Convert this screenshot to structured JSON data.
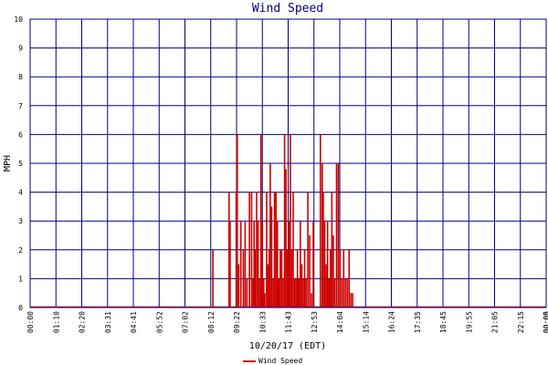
{
  "chart_data": {
    "type": "bar",
    "title": "Wind Speed",
    "xlabel": "10/20/17 (EDT)",
    "ylabel": "MPH",
    "ylim": [
      0,
      10
    ],
    "y_ticks": [
      "0",
      "1",
      "2",
      "3",
      "4",
      "5",
      "6",
      "7",
      "8",
      "9",
      "10"
    ],
    "x_range_minutes": [
      0,
      1440
    ],
    "x_ticks": [
      "00:00",
      "01:10",
      "02:20",
      "03:31",
      "04:41",
      "05:52",
      "07:02",
      "08:12",
      "09:22",
      "10:33",
      "11:43",
      "12:53",
      "14:04",
      "15:14",
      "16:24",
      "17:35",
      "18:45",
      "19:55",
      "21:05",
      "22:15",
      "00:00",
      "00:05"
    ],
    "grid": true,
    "legend_position": "bottom-center",
    "colors": {
      "series": "#cc0000",
      "grid": "#000080",
      "title": "#000080"
    },
    "series": [
      {
        "name": "Wind Speed",
        "x_minutes": [
          510,
          555,
          558,
          575,
          578,
          582,
          588,
          595,
          600,
          605,
          612,
          618,
          622,
          625,
          628,
          632,
          636,
          640,
          644,
          648,
          652,
          655,
          660,
          663,
          667,
          670,
          674,
          678,
          682,
          686,
          690,
          694,
          698,
          702,
          706,
          710,
          714,
          718,
          722,
          726,
          730,
          734,
          738,
          742,
          746,
          750,
          754,
          758,
          762,
          766,
          770,
          775,
          780,
          785,
          790,
          810,
          815,
          818,
          822,
          826,
          830,
          834,
          838,
          842,
          846,
          850,
          855,
          860,
          865,
          870,
          875,
          880,
          885,
          890,
          895,
          900
        ],
        "values": [
          2,
          4,
          3,
          4,
          6,
          1.5,
          3,
          2,
          3,
          1,
          4,
          4,
          1,
          3,
          2,
          4,
          3,
          1,
          6,
          3,
          1,
          0.5,
          4,
          1.5,
          2,
          5,
          3.5,
          1,
          4,
          4,
          3,
          1,
          2,
          2,
          1,
          6,
          4.8,
          2,
          3,
          6,
          2,
          4,
          1,
          1,
          2,
          1,
          3,
          1.5,
          1,
          2,
          1,
          4,
          2.5,
          0.5,
          3,
          6,
          5,
          4,
          3,
          1.5,
          3,
          1,
          2,
          4,
          2.5,
          1,
          5,
          5,
          2,
          1,
          2,
          1,
          1,
          2,
          0.5,
          0.5
        ]
      }
    ]
  }
}
